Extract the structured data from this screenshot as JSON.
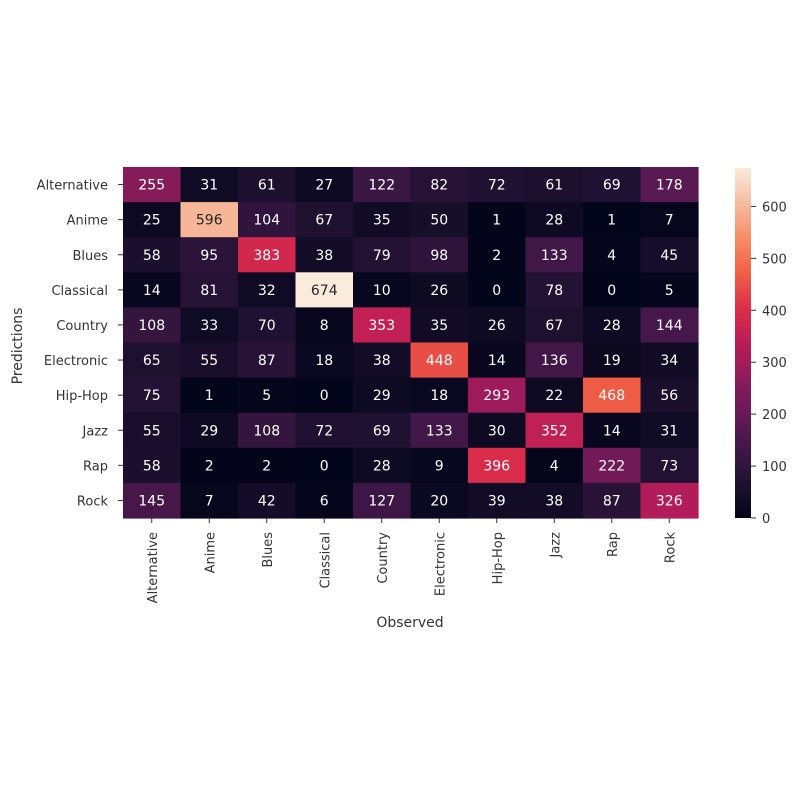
{
  "chart_data": {
    "type": "heatmap",
    "title": "",
    "xlabel": "Observed",
    "ylabel": "Predictions",
    "x_categories": [
      "Alternative",
      "Anime",
      "Blues",
      "Classical",
      "Country",
      "Electronic",
      "Hip-Hop",
      "Jazz",
      "Rap",
      "Rock"
    ],
    "y_categories": [
      "Alternative",
      "Anime",
      "Blues",
      "Classical",
      "Country",
      "Electronic",
      "Hip-Hop",
      "Jazz",
      "Rap",
      "Rock"
    ],
    "values": [
      [
        255,
        31,
        61,
        27,
        122,
        82,
        72,
        61,
        69,
        178
      ],
      [
        25,
        596,
        104,
        67,
        35,
        50,
        1,
        28,
        1,
        7
      ],
      [
        58,
        95,
        383,
        38,
        79,
        98,
        2,
        133,
        4,
        45
      ],
      [
        14,
        81,
        32,
        674,
        10,
        26,
        0,
        78,
        0,
        5
      ],
      [
        108,
        33,
        70,
        8,
        353,
        35,
        26,
        67,
        28,
        144
      ],
      [
        65,
        55,
        87,
        18,
        38,
        448,
        14,
        136,
        19,
        34
      ],
      [
        75,
        1,
        5,
        0,
        29,
        18,
        293,
        22,
        468,
        56
      ],
      [
        55,
        29,
        108,
        72,
        69,
        133,
        30,
        352,
        14,
        31
      ],
      [
        58,
        2,
        2,
        0,
        28,
        9,
        396,
        4,
        222,
        73
      ],
      [
        145,
        7,
        42,
        6,
        127,
        20,
        39,
        38,
        87,
        326
      ]
    ],
    "colorbar": {
      "min": 0,
      "max": 674,
      "ticks": [
        0,
        100,
        200,
        300,
        400,
        500,
        600
      ],
      "colormap": "rocket"
    },
    "grid": false
  }
}
